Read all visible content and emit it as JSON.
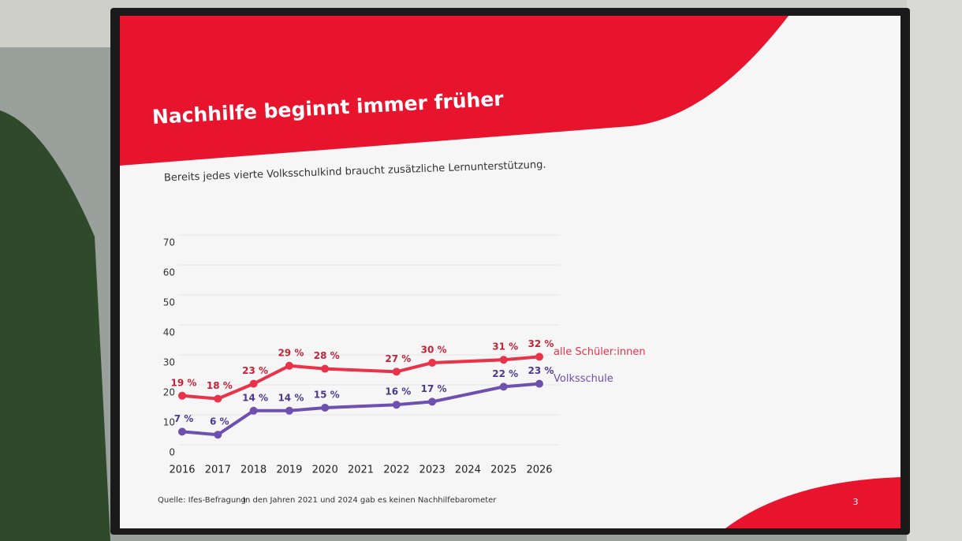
{
  "chart_data": {
    "type": "line",
    "title": "Nachhilfe beginnt immer früher",
    "subtitle": "Bereits jedes vierte Volksschulkind braucht zusätzliche Lernunterstützung.",
    "x": [
      2016,
      2017,
      2018,
      2019,
      2020,
      2022,
      2023,
      2025,
      2026
    ],
    "xlim": [
      2016,
      2026
    ],
    "xticks": [
      2016,
      2017,
      2018,
      2019,
      2020,
      2021,
      2022,
      2023,
      2024,
      2025,
      2026
    ],
    "ylim": [
      0,
      70
    ],
    "yticks": [
      0,
      10,
      20,
      30,
      40,
      50,
      60,
      70
    ],
    "grid": true,
    "series": [
      {
        "name": "alle Schüler:innen",
        "color": "#e8334a",
        "label_color": "#c42338",
        "values": [
          19,
          18,
          23,
          29,
          28,
          27,
          30,
          31,
          32
        ],
        "value_labels": [
          "19 %",
          "18 %",
          "23 %",
          "29 %",
          "28 %",
          "27 %",
          "30 %",
          "31 %",
          "32 %"
        ]
      },
      {
        "name": "Volksschule",
        "color": "#6f4fb0",
        "label_color": "#4b3a8c",
        "values": [
          7,
          6,
          14,
          14,
          15,
          16,
          17,
          22,
          23
        ],
        "value_labels": [
          "7 %",
          "6 %",
          "14 %",
          "14 %",
          "15 %",
          "16 %",
          "17 %",
          "22 %",
          "23 %"
        ]
      }
    ]
  },
  "slide": {
    "source": "Quelle: Ifes-Befragung",
    "note": "In den Jahren 2021 und 2024 gab es keinen Nachhilfebarometer",
    "page": "3"
  }
}
